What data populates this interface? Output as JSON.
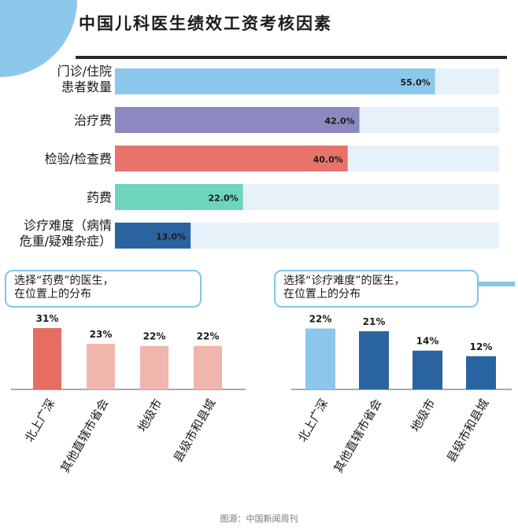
{
  "title": "中国儿科医生绩效工资考核因素",
  "source": "图源：中国新闻周刊",
  "colors": {
    "track": "#e6f1f9",
    "top_series": [
      "#8cc8ec",
      "#8b89bf",
      "#e8736b",
      "#6ed4bc",
      "#2a64a0"
    ],
    "drug_series": [
      "#e66d62",
      "#f2b5ad",
      "#f2b5ad",
      "#f2b5ad"
    ],
    "difficulty_series": [
      "#8cc8ec",
      "#2a64a0",
      "#2a64a0",
      "#2a64a0"
    ],
    "accent": "#7fc6e8"
  },
  "chart_data": [
    {
      "type": "bar",
      "orientation": "horizontal",
      "categories": [
        [
          "门诊/住院",
          "患者数量"
        ],
        [
          "治疗费"
        ],
        [
          "检验/检查费"
        ],
        [
          "药费"
        ],
        [
          "诊疗难度（病情",
          "危重/疑难杂症）"
        ]
      ],
      "values": [
        55.0,
        42.0,
        40.0,
        22.0,
        13.0
      ],
      "value_labels": [
        "55.0%",
        "42.0%",
        "40.0%",
        "22.0%",
        "13.0%"
      ],
      "xlim": [
        0,
        66
      ]
    },
    {
      "type": "bar",
      "title_lines": [
        "选择“药费”的医生，",
        "在位置上的分布"
      ],
      "categories": [
        "北上广深",
        "其他直辖市省会",
        "地级市",
        "县级市和县城"
      ],
      "values": [
        31,
        23,
        22,
        22
      ],
      "value_labels": [
        "31%",
        "23%",
        "22%",
        "22%"
      ],
      "ylim": [
        0,
        35
      ]
    },
    {
      "type": "bar",
      "title_lines": [
        "选择“诊疗难度”的医生，",
        "在位置上的分布"
      ],
      "categories": [
        "北上广深",
        "其他直辖市省会",
        "地级市",
        "县级市和县城"
      ],
      "values": [
        22,
        21,
        14,
        12
      ],
      "value_labels": [
        "22%",
        "21%",
        "14%",
        "12%"
      ],
      "ylim": [
        0,
        25
      ]
    }
  ]
}
